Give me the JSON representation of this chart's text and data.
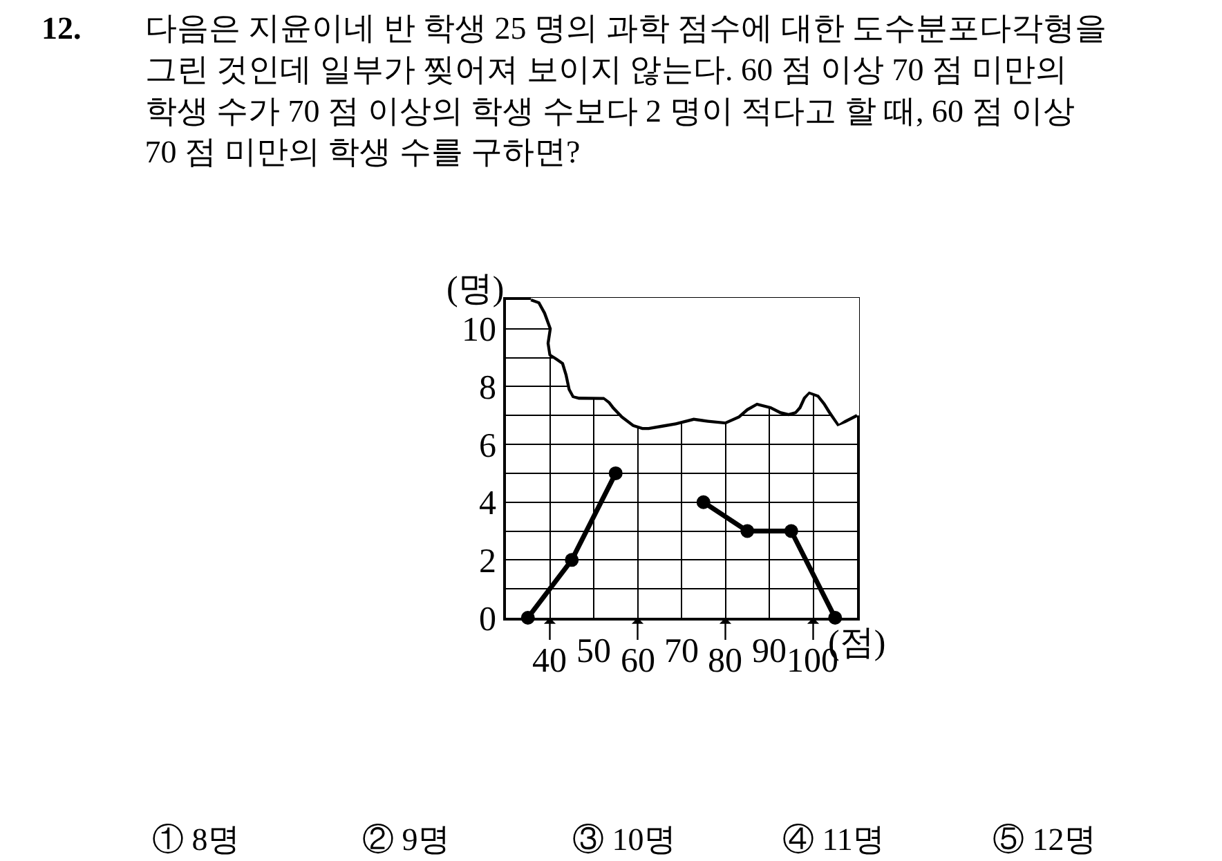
{
  "chart_data": {
    "type": "line",
    "title": "12. 다음은 지윤이네 반 학생 25 명의 과학 점수에 대한 도수분포다각형을\n그린 것인데 일부가 찢어져 보이지 않는다. 60 점 이상 70 점 미만의\n학생 수가 70 점 이상의 학생 수보다 2 명이 적다고 할 때, 60 점 이상\n70 점 미만의 학생 수를 구하면?",
    "xlabel": "(점)",
    "ylabel": "(명)",
    "x": [
      35,
      45,
      55,
      65,
      75,
      85,
      95,
      105
    ],
    "series": [
      {
        "color": "#000000",
        "values": [
          0,
          2,
          5,
          null,
          4,
          3,
          3,
          0
        ]
      }
    ],
    "xlim": [
      30,
      110
    ],
    "ylim": [
      0,
      11
    ],
    "xticks": [
      40,
      50,
      60,
      70,
      80,
      90,
      100
    ],
    "yticks": [
      0,
      {
        "value": 1,
        "label": null
      },
      2,
      {
        "value": 3,
        "label": null
      },
      4,
      {
        "value": 5,
        "label": null
      },
      6,
      {
        "value": 7,
        "label": null
      },
      8,
      {
        "value": 9,
        "label": null
      },
      10
    ],
    "grid": true,
    "marker": "circle",
    "line_style": "solid",
    "annotations": [
      "① 8명",
      "② 9명",
      "③ 10명",
      "④ 11명",
      "⑤ 12명"
    ]
  }
}
